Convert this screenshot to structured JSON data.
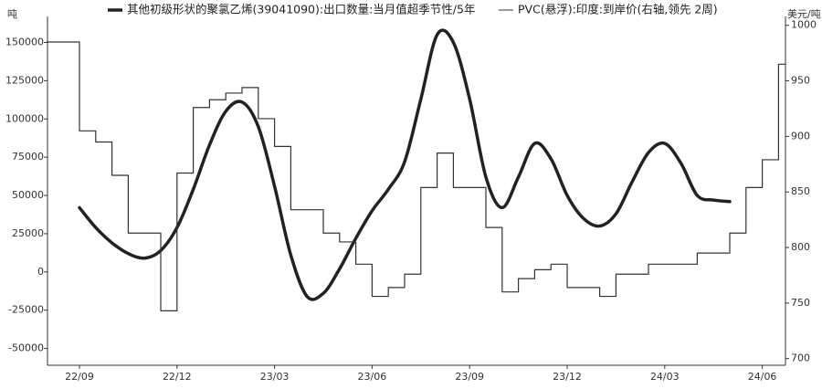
{
  "chart_data": {
    "type": "line",
    "y_unit_label": "吨",
    "y2_unit_label": "美元/吨",
    "categories": [
      null,
      null,
      "22/09",
      null,
      null,
      null,
      null,
      null,
      "22/12",
      null,
      null,
      null,
      null,
      null,
      "23/03",
      null,
      null,
      null,
      null,
      null,
      "23/06",
      null,
      null,
      null,
      null,
      null,
      "23/09",
      null,
      null,
      null,
      null,
      null,
      "23/12",
      null,
      null,
      null,
      null,
      null,
      "24/03",
      null,
      null,
      null,
      null,
      null,
      "24/06",
      null
    ],
    "ylim": [
      -61000,
      167000
    ],
    "yticks": [
      -50000,
      -25000,
      0,
      25000,
      50000,
      75000,
      100000,
      125000,
      150000
    ],
    "y2lim": [
      694,
      1008
    ],
    "y2ticks": [
      700,
      750,
      800,
      850,
      900,
      950,
      1000
    ],
    "legend": "top",
    "series": [
      {
        "name": "其他初级形状的聚氯乙烯(39041090):出口数量:当月值超季节性/5年",
        "color": "#222222",
        "style": "smooth",
        "values": [
          null,
          null,
          42000,
          29000,
          19000,
          12000,
          9000,
          14000,
          29000,
          54000,
          83000,
          105000,
          111000,
          95000,
          56000,
          11000,
          -16000,
          -14000,
          2000,
          22000,
          40000,
          54000,
          72000,
          113000,
          155000,
          150000,
          113000,
          62000,
          42000,
          62000,
          84000,
          74000,
          50000,
          35000,
          30000,
          38000,
          59000,
          78000,
          84000,
          71000,
          50000,
          47000,
          46000,
          null,
          null,
          null
        ]
      },
      {
        "name": "PVC(悬浮):印度:到岸价(右轴,领先 2周)",
        "color": "#333333",
        "style": "step",
        "axis": "y2",
        "values": [
          985,
          985,
          905,
          895,
          865,
          813,
          813,
          743,
          867,
          926,
          933,
          939,
          944,
          916,
          891,
          834,
          834,
          813,
          805,
          785,
          756,
          764,
          776,
          854,
          885,
          854,
          854,
          818,
          760,
          772,
          780,
          785,
          764,
          764,
          756,
          776,
          776,
          785,
          785,
          785,
          795,
          795,
          813,
          854,
          879,
          965
        ]
      }
    ]
  }
}
